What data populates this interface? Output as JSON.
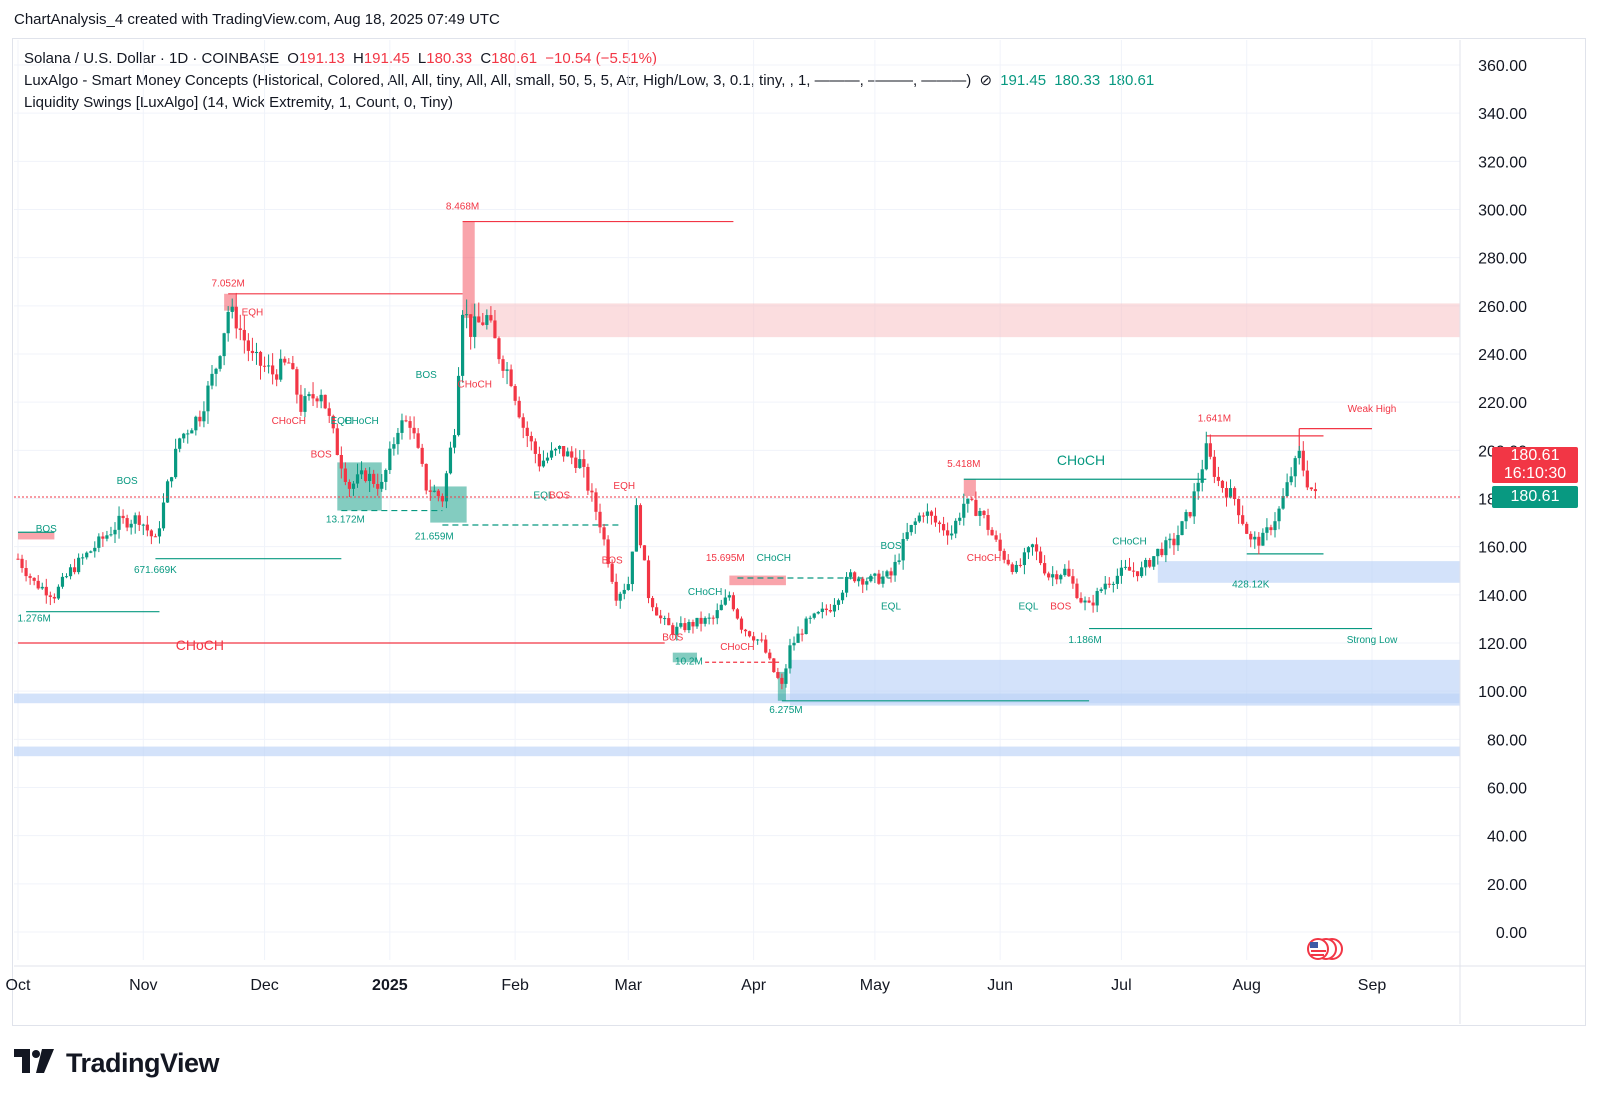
{
  "header": {
    "credit": "ChartAnalysis_4 created with TradingView.com, Aug 18, 2025 07:49 UTC"
  },
  "legend": {
    "symbol": "Solana / U.S. Dollar · 1D · COINBASE",
    "o_label": "O",
    "o_value": "191.13",
    "h_label": "H",
    "h_value": "191.45",
    "l_label": "L",
    "l_value": "180.33",
    "c_label": "C",
    "c_value": "180.61",
    "change": "−10.54 (−5.51%)",
    "indicator1": "LuxAlgo - Smart Money Concepts (Historical, Colored, All, All, tiny, All, All, small, 50, 5, 5, Atr, High/Low, 3, 0.1, tiny, , 1, ———, ———, ———)",
    "indicator1_hidden_icon": "eye-off-icon",
    "indicator1_values": [
      "191.45",
      "180.33",
      "180.61"
    ],
    "indicator2": "Liquidity Swings [LuxAlgo] (14, Wick Extremity, 1, Count, 0, Tiny)"
  },
  "price_badge": {
    "price": "180.61",
    "countdown": "16:10:30"
  },
  "last_badge": "180.61",
  "brand": {
    "name": "TradingView",
    "logo_icon": "tradingview-logo-icon",
    "flag_icon": "us-flag-icon"
  },
  "colors": {
    "up": "#089981",
    "down": "#f23645",
    "ob_blue": "#bcd3f7",
    "ob_red": "#f7c1c5",
    "grid": "#f0f3fa"
  },
  "chart_data": {
    "type": "candlestick",
    "symbol": "SOL/USD",
    "timeframe": "1D",
    "y_range": [
      -10,
      370
    ],
    "y_ticks": [
      "360.00",
      "340.00",
      "320.00",
      "300.00",
      "280.00",
      "260.00",
      "240.00",
      "220.00",
      "200.00",
      "180.00",
      "160.00",
      "140.00",
      "120.00",
      "100.00",
      "80.00",
      "60.00",
      "40.00",
      "20.00",
      "0.00"
    ],
    "x_ticks": [
      "Oct",
      "Nov",
      "Dec",
      "2025",
      "Feb",
      "Mar",
      "Apr",
      "May",
      "Jun",
      "Jul",
      "Aug",
      "Sep"
    ],
    "x_tick_dates": [
      "2024-10-01",
      "2024-11-01",
      "2024-12-01",
      "2025-01-01",
      "2025-02-01",
      "2025-03-01",
      "2025-04-01",
      "2025-05-01",
      "2025-06-01",
      "2025-07-01",
      "2025-08-01",
      "2025-09-01"
    ],
    "price_anchors": [
      [
        "2024-10-01",
        155
      ],
      [
        "2024-10-05",
        145
      ],
      [
        "2024-10-10",
        140
      ],
      [
        "2024-10-14",
        150
      ],
      [
        "2024-10-20",
        160
      ],
      [
        "2024-10-26",
        170
      ],
      [
        "2024-10-31",
        172
      ],
      [
        "2024-11-04",
        162
      ],
      [
        "2024-11-07",
        185
      ],
      [
        "2024-11-10",
        205
      ],
      [
        "2024-11-15",
        215
      ],
      [
        "2024-11-19",
        235
      ],
      [
        "2024-11-22",
        258
      ],
      [
        "2024-11-24",
        254
      ],
      [
        "2024-11-28",
        238
      ],
      [
        "2024-12-03",
        232
      ],
      [
        "2024-12-07",
        236
      ],
      [
        "2024-12-10",
        218
      ],
      [
        "2024-12-15",
        225
      ],
      [
        "2024-12-19",
        200
      ],
      [
        "2024-12-22",
        185
      ],
      [
        "2024-12-26",
        190
      ],
      [
        "2024-12-30",
        185
      ],
      [
        "2025-01-03",
        210
      ],
      [
        "2025-01-06",
        212
      ],
      [
        "2025-01-10",
        185
      ],
      [
        "2025-01-14",
        180
      ],
      [
        "2025-01-17",
        210
      ],
      [
        "2025-01-19",
        260
      ],
      [
        "2025-01-21",
        250
      ],
      [
        "2025-01-25",
        255
      ],
      [
        "2025-01-28",
        240
      ],
      [
        "2025-01-31",
        230
      ],
      [
        "2025-02-03",
        210
      ],
      [
        "2025-02-07",
        195
      ],
      [
        "2025-02-12",
        200
      ],
      [
        "2025-02-17",
        195
      ],
      [
        "2025-02-22",
        170
      ],
      [
        "2025-02-26",
        140
      ],
      [
        "2025-03-01",
        145
      ],
      [
        "2025-03-03",
        175
      ],
      [
        "2025-03-06",
        140
      ],
      [
        "2025-03-09",
        130
      ],
      [
        "2025-03-12",
        125
      ],
      [
        "2025-03-17",
        128
      ],
      [
        "2025-03-22",
        130
      ],
      [
        "2025-03-26",
        140
      ],
      [
        "2025-03-29",
        127
      ],
      [
        "2025-04-03",
        120
      ],
      [
        "2025-04-06",
        108
      ],
      [
        "2025-04-08",
        102
      ],
      [
        "2025-04-10",
        118
      ],
      [
        "2025-04-14",
        128
      ],
      [
        "2025-04-20",
        135
      ],
      [
        "2025-04-25",
        148
      ],
      [
        "2025-04-30",
        146
      ],
      [
        "2025-05-05",
        148
      ],
      [
        "2025-05-09",
        165
      ],
      [
        "2025-05-13",
        175
      ],
      [
        "2025-05-16",
        170
      ],
      [
        "2025-05-20",
        166
      ],
      [
        "2025-05-23",
        178
      ],
      [
        "2025-05-27",
        175
      ],
      [
        "2025-06-01",
        158
      ],
      [
        "2025-06-05",
        150
      ],
      [
        "2025-06-09",
        160
      ],
      [
        "2025-06-13",
        148
      ],
      [
        "2025-06-17",
        150
      ],
      [
        "2025-06-21",
        138
      ],
      [
        "2025-06-23",
        135
      ],
      [
        "2025-06-27",
        145
      ],
      [
        "2025-07-02",
        150
      ],
      [
        "2025-07-06",
        150
      ],
      [
        "2025-07-10",
        158
      ],
      [
        "2025-07-14",
        162
      ],
      [
        "2025-07-18",
        175
      ],
      [
        "2025-07-22",
        200
      ],
      [
        "2025-07-25",
        187
      ],
      [
        "2025-07-29",
        180
      ],
      [
        "2025-08-02",
        162
      ],
      [
        "2025-08-05",
        163
      ],
      [
        "2025-08-09",
        175
      ],
      [
        "2025-08-12",
        190
      ],
      [
        "2025-08-14",
        198
      ],
      [
        "2025-08-16",
        187
      ],
      [
        "2025-08-18",
        181
      ]
    ],
    "blue_zones": [
      [
        73,
        77
      ],
      [
        95,
        99
      ],
      [
        94,
        113
      ],
      [
        145,
        154
      ]
    ],
    "red_zones": [
      [
        247,
        261
      ]
    ],
    "labels": [
      {
        "text": "7.052M",
        "date": "2024-11-22",
        "price": 268,
        "color": "red"
      },
      {
        "text": "8.468M",
        "date": "2025-01-19",
        "price": 300,
        "color": "red"
      },
      {
        "text": "EQH",
        "date": "2024-11-28",
        "price": 256,
        "color": "red"
      },
      {
        "text": "BOS",
        "date": "2024-10-28",
        "price": 186,
        "color": "green"
      },
      {
        "text": "BOS",
        "date": "2024-10-08",
        "price": 166,
        "color": "green"
      },
      {
        "text": "1.276M",
        "date": "2024-10-05",
        "price": 129,
        "color": "green"
      },
      {
        "text": "671.669K",
        "date": "2024-11-04",
        "price": 149,
        "color": "green"
      },
      {
        "text": "CHoCH",
        "date": "2024-12-07",
        "price": 211,
        "color": "red"
      },
      {
        "text": "BOS",
        "date": "2024-12-15",
        "price": 197,
        "color": "red"
      },
      {
        "text": "EQH",
        "date": "2024-12-20",
        "price": 211,
        "color": "green"
      },
      {
        "text": "CHoCH",
        "date": "2024-12-25",
        "price": 211,
        "color": "green"
      },
      {
        "text": "BOS",
        "date": "2025-01-10",
        "price": 230,
        "color": "green"
      },
      {
        "text": "CHoCH",
        "date": "2025-01-22",
        "price": 226,
        "color": "red"
      },
      {
        "text": "13.172M",
        "date": "2024-12-21",
        "price": 170,
        "color": "green"
      },
      {
        "text": "21.659M",
        "date": "2025-01-12",
        "price": 163,
        "color": "green"
      },
      {
        "text": "EQL",
        "date": "2025-02-08",
        "price": 180,
        "color": "green"
      },
      {
        "text": "BOS",
        "date": "2025-02-12",
        "price": 180,
        "color": "red"
      },
      {
        "text": "EQH",
        "date": "2025-02-28",
        "price": 184,
        "color": "red"
      },
      {
        "text": "BOS",
        "date": "2025-02-25",
        "price": 153,
        "color": "red"
      },
      {
        "text": "CHoCH",
        "date": "2024-11-15",
        "price": 117,
        "color": "red"
      },
      {
        "text": "BOS",
        "date": "2025-03-12",
        "price": 121,
        "color": "red"
      },
      {
        "text": "10.2M",
        "date": "2025-03-16",
        "price": 111,
        "color": "green"
      },
      {
        "text": "CHoCH",
        "date": "2025-03-20",
        "price": 140,
        "color": "green"
      },
      {
        "text": "15.695M",
        "date": "2025-03-25",
        "price": 154,
        "color": "red"
      },
      {
        "text": "CHoCH",
        "date": "2025-04-06",
        "price": 154,
        "color": "green"
      },
      {
        "text": "CHoCH",
        "date": "2025-03-28",
        "price": 117,
        "color": "red"
      },
      {
        "text": "6.275M",
        "date": "2025-04-09",
        "price": 91,
        "color": "green"
      },
      {
        "text": "BOS",
        "date": "2025-05-05",
        "price": 159,
        "color": "green"
      },
      {
        "text": "EQL",
        "date": "2025-05-05",
        "price": 134,
        "color": "green"
      },
      {
        "text": "5.418M",
        "date": "2025-05-23",
        "price": 193,
        "color": "red"
      },
      {
        "text": "CHoCH",
        "date": "2025-05-28",
        "price": 154,
        "color": "red"
      },
      {
        "text": "CHoCH",
        "date": "2025-06-21",
        "price": 194,
        "color": "green"
      },
      {
        "text": "EQL",
        "date": "2025-06-08",
        "price": 134,
        "color": "green"
      },
      {
        "text": "BOS",
        "date": "2025-06-16",
        "price": 134,
        "color": "red"
      },
      {
        "text": "1.186M",
        "date": "2025-06-22",
        "price": 120,
        "color": "green"
      },
      {
        "text": "CHoCH",
        "date": "2025-07-03",
        "price": 161,
        "color": "green"
      },
      {
        "text": "1.641M",
        "date": "2025-07-24",
        "price": 212,
        "color": "red"
      },
      {
        "text": "428.12K",
        "date": "2025-08-02",
        "price": 143,
        "color": "green"
      },
      {
        "text": "Weak High",
        "date": "2025-09-01",
        "price": 216,
        "color": "red"
      },
      {
        "text": "Strong Low",
        "date": "2025-09-01",
        "price": 120,
        "color": "green"
      }
    ],
    "last_price": 180.61,
    "grid": true,
    "legend_position": "top-left"
  }
}
